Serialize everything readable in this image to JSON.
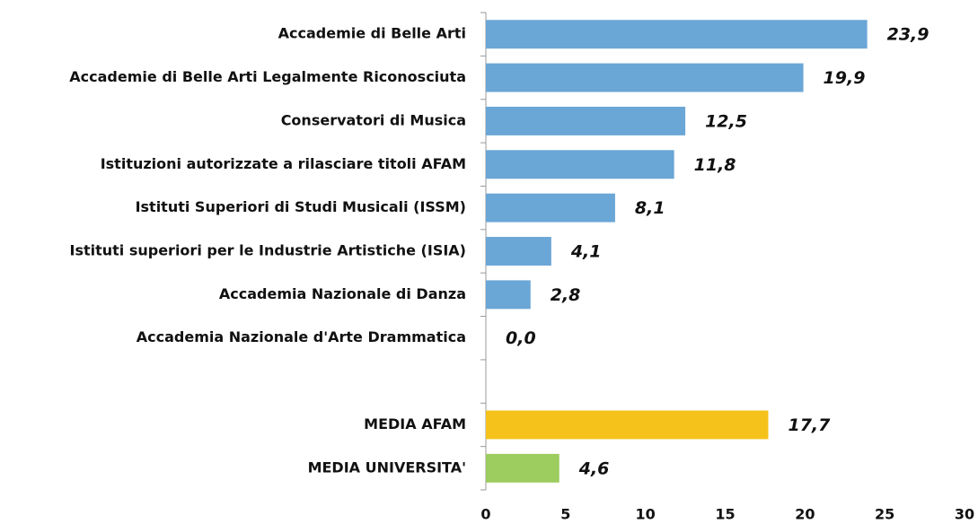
{
  "chart_data": {
    "type": "hbar",
    "categories": [
      "Accademie di Belle Arti",
      "Accademie di Belle Arti Legalmente Riconosciuta",
      "Conservatori di Musica",
      "Istituzioni autorizzate a rilasciare titoli AFAM",
      "Istituti Superiori di Studi Musicali (ISSM)",
      "Istituti superiori per le Industrie Artistiche (ISIA)",
      "Accademia Nazionale di Danza",
      "Accademia Nazionale d'Arte Drammatica",
      null,
      "MEDIA AFAM",
      "MEDIA UNIVERSITA'"
    ],
    "values": [
      23.9,
      19.9,
      12.5,
      11.8,
      8.1,
      4.1,
      2.8,
      0.0,
      null,
      17.7,
      4.6
    ],
    "value_labels": [
      "23,9",
      "19,9",
      "12,5",
      "11,8",
      "8,1",
      "4,1",
      "2,8",
      "0,0",
      null,
      "17,7",
      "4,6"
    ],
    "colors": [
      "#6aa6d6",
      "#6aa6d6",
      "#6aa6d6",
      "#6aa6d6",
      "#6aa6d6",
      "#6aa6d6",
      "#6aa6d6",
      "#6aa6d6",
      null,
      "#f5c21b",
      "#9dcc5f"
    ],
    "xlim": [
      0,
      30
    ],
    "xticks": [
      0,
      5,
      10,
      15,
      20,
      25,
      30
    ],
    "grid": false
  }
}
